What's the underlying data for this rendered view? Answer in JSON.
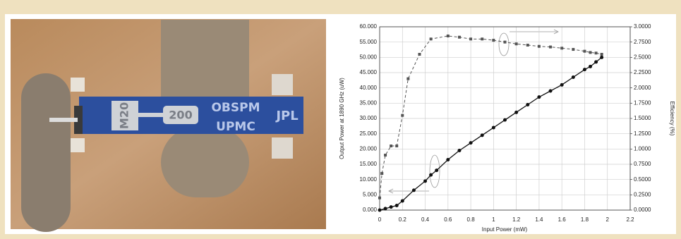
{
  "photo": {
    "labels": [
      "M20",
      "200",
      "OBSPM",
      "UPMC",
      "JPL"
    ]
  },
  "chart_data": {
    "type": "line",
    "xlabel": "Input Power (mW)",
    "ylabel": "Output Power at 1890 GHz (uW)",
    "y2label": "Efficiency (%)",
    "xlim": [
      0,
      2.2
    ],
    "xticks": [
      0,
      0.2,
      0.4,
      0.6,
      0.8,
      1,
      1.2,
      1.4,
      1.6,
      1.8,
      2,
      2.2
    ],
    "ylim": [
      0,
      60
    ],
    "yticks": [
      {
        "value": 0,
        "label": "0.000"
      },
      {
        "value": 5,
        "label": "5.000"
      },
      {
        "value": 10,
        "label": "10.000"
      },
      {
        "value": 15,
        "label": "15.000"
      },
      {
        "value": 20,
        "label": "20.000"
      },
      {
        "value": 25,
        "label": "25.000"
      },
      {
        "value": 30,
        "label": "30.000"
      },
      {
        "value": 35,
        "label": "35.000"
      },
      {
        "value": 40,
        "label": "40.000"
      },
      {
        "value": 45,
        "label": "45.000"
      },
      {
        "value": 50,
        "label": "50.000"
      },
      {
        "value": 55,
        "label": "55.000"
      },
      {
        "value": 60,
        "label": "60.000"
      }
    ],
    "y2lim": [
      0,
      3
    ],
    "y2ticks": [
      {
        "value": 0,
        "label": "0.0000"
      },
      {
        "value": 0.25,
        "label": "0.2500"
      },
      {
        "value": 0.5,
        "label": "0.5000"
      },
      {
        "value": 0.75,
        "label": "0.7500"
      },
      {
        "value": 1,
        "label": "1.0000"
      },
      {
        "value": 1.25,
        "label": "1.2500"
      },
      {
        "value": 1.5,
        "label": "1.5000"
      },
      {
        "value": 1.75,
        "label": "1.7500"
      },
      {
        "value": 2,
        "label": "2.0000"
      },
      {
        "value": 2.25,
        "label": "2.2500"
      },
      {
        "value": 2.5,
        "label": "2.5000"
      },
      {
        "value": 2.75,
        "label": "2.7500"
      },
      {
        "value": 3,
        "label": "3.0000"
      }
    ],
    "grid": true,
    "series": [
      {
        "color": "#111111",
        "dash": false,
        "marker": "circle",
        "x": [
          0,
          0.05,
          0.1,
          0.15,
          0.2,
          0.3,
          0.4,
          0.45,
          0.5,
          0.6,
          0.7,
          0.8,
          0.9,
          1.0,
          1.1,
          1.2,
          1.3,
          1.4,
          1.5,
          1.6,
          1.7,
          1.8,
          1.85,
          1.9,
          1.95
        ],
        "values": [
          0,
          0.5,
          1,
          1.5,
          3,
          6.5,
          9.5,
          11.5,
          13,
          16.5,
          19.5,
          22,
          24.5,
          27,
          29.5,
          32,
          34.5,
          37,
          39,
          41,
          43.5,
          46,
          47,
          48.5,
          50
        ]
      },
      {
        "color": "#555555",
        "dash": true,
        "marker": "square",
        "axis": "y2",
        "x": [
          0,
          0.02,
          0.05,
          0.1,
          0.15,
          0.2,
          0.25,
          0.35,
          0.45,
          0.6,
          0.7,
          0.8,
          0.9,
          1.0,
          1.1,
          1.2,
          1.3,
          1.4,
          1.5,
          1.6,
          1.7,
          1.8,
          1.85,
          1.9,
          1.95
        ],
        "values": [
          0.2,
          0.6,
          0.9,
          1.05,
          1.05,
          1.55,
          2.15,
          2.55,
          2.8,
          2.85,
          2.83,
          2.8,
          2.8,
          2.78,
          2.75,
          2.72,
          2.7,
          2.68,
          2.67,
          2.65,
          2.63,
          2.6,
          2.58,
          2.57,
          2.55
        ]
      }
    ]
  }
}
